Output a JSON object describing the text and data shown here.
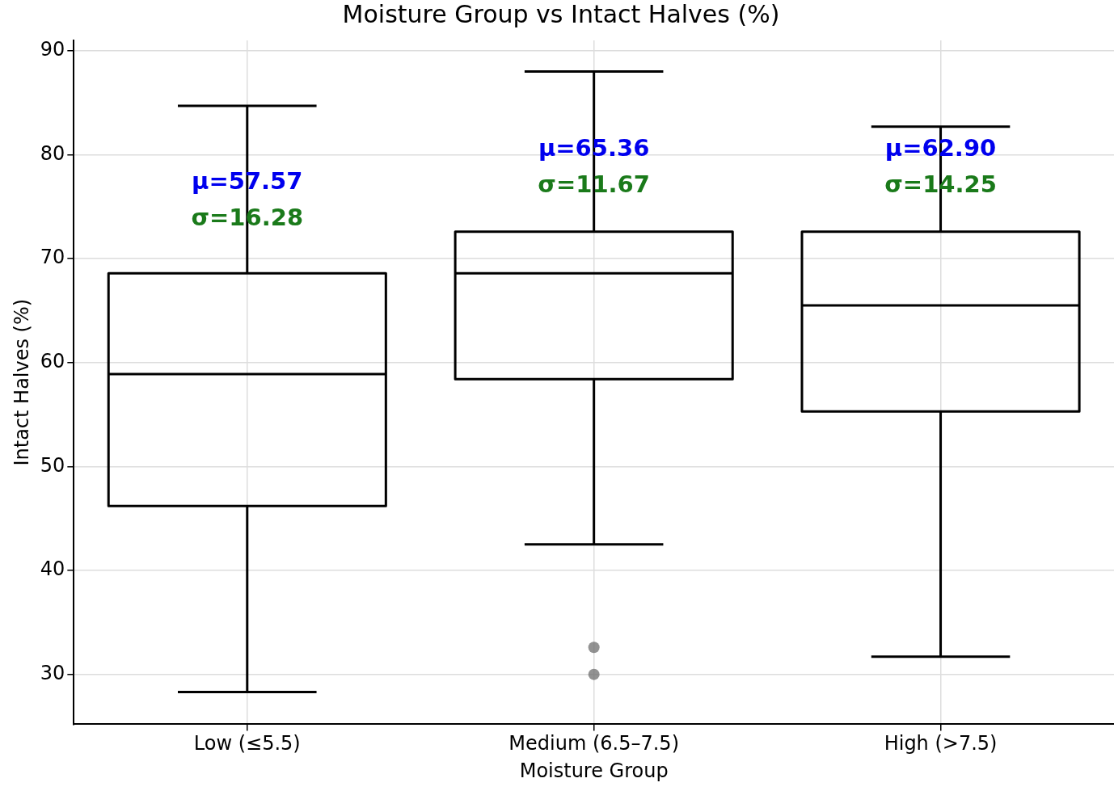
{
  "chart_data": {
    "type": "box",
    "title": "Moisture Group vs Intact Halves (%)",
    "xlabel": "Moisture Group",
    "ylabel": "Intact Halves (%)",
    "categories": [
      "Low (≤5.5)",
      "Medium (6.5–7.5)",
      "High (>7.5)"
    ],
    "color": "#000000",
    "boxes": [
      {
        "low": 28.3,
        "q1": 46.2,
        "median": 58.9,
        "q3": 68.6,
        "high": 84.7
      },
      {
        "low": 42.5,
        "q1": 58.4,
        "median": 68.6,
        "q3": 72.6,
        "high": 88,
        "outliers": [
          32.6,
          30.0
        ]
      },
      {
        "low": 31.7,
        "q1": 55.3,
        "median": 65.5,
        "q3": 72.6,
        "high": 82.7
      }
    ],
    "ylim": [
      25.2,
      91
    ],
    "yticks": [
      30,
      40,
      50,
      60,
      70,
      80,
      90
    ],
    "grid": true,
    "annotations": [
      {
        "text": "μ=57.57",
        "x": "Low (≤5.5)",
        "y": 77.3
      },
      {
        "text": "σ=16.28",
        "x": "Low (≤5.5)",
        "y": 73.8
      },
      {
        "text": "μ=65.36",
        "x": "Medium (6.5–7.5)",
        "y": 80.5
      },
      {
        "text": "σ=11.67",
        "x": "Medium (6.5–7.5)",
        "y": 77
      },
      {
        "text": "μ=62.90",
        "x": "High (>7.5)",
        "y": 80.5
      },
      {
        "text": "σ=14.25",
        "x": "High (>7.5)",
        "y": 77
      }
    ]
  }
}
